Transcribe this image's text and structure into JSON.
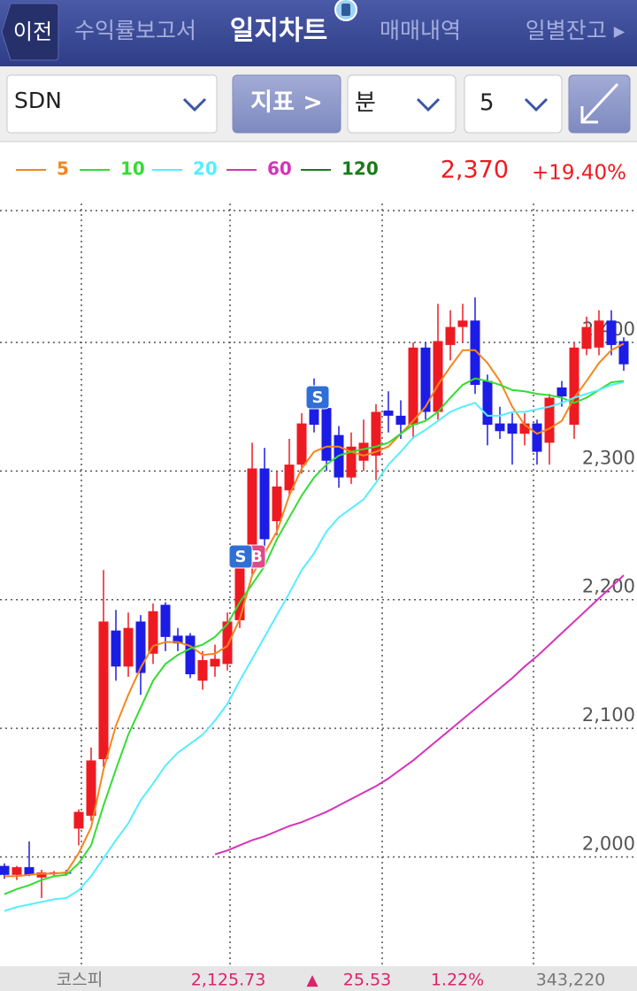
{
  "header": {
    "back": "이전",
    "tabs": [
      "수익률보고서",
      "일지차트",
      "매매내역",
      "일별잔고 ▸"
    ]
  },
  "toolbar": {
    "symbol": "SDN",
    "indicator": "지표 >",
    "unit": "분",
    "interval": "5"
  },
  "chart_data": {
    "type": "candlestick",
    "current_price": "2,370",
    "change": "+19.40%",
    "up_color": "#ee1a22",
    "down_color": "#1c1ce6",
    "open": [
      1993,
      1986,
      1992,
      1984,
      1987,
      1988,
      2022,
      2032,
      2076,
      2176,
      2148,
      2183,
      2158,
      2196,
      2172,
      2172,
      2137,
      2148,
      2150,
      2184,
      2226,
      2302,
      2261,
      2285,
      2305,
      2349,
      2349,
      2328,
      2295,
      2308,
      2312,
      2347,
      2343,
      2336,
      2396,
      2346,
      2398,
      2412,
      2417,
      2370,
      2337,
      2337,
      2329,
      2337,
      2322,
      2365,
      2336,
      2395,
      2396,
      2417,
      2401
    ],
    "high": [
      1995,
      1993,
      2012,
      1990,
      1989,
      1990,
      2037,
      2085,
      2223,
      2192,
      2190,
      2188,
      2197,
      2198,
      2178,
      2174,
      2160,
      2165,
      2190,
      2240,
      2322,
      2318,
      2300,
      2325,
      2345,
      2372,
      2355,
      2335,
      2330,
      2340,
      2352,
      2362,
      2355,
      2400,
      2400,
      2430,
      2425,
      2430,
      2435,
      2375,
      2350,
      2345,
      2345,
      2340,
      2360,
      2370,
      2400,
      2420,
      2425,
      2425,
      2404
    ],
    "low": [
      1983,
      1982,
      1985,
      1968,
      1985,
      1986,
      2009,
      2028,
      2070,
      2137,
      2140,
      2126,
      2150,
      2160,
      2160,
      2139,
      2130,
      2140,
      2145,
      2178,
      2220,
      2240,
      2250,
      2280,
      2298,
      2330,
      2300,
      2287,
      2290,
      2300,
      2293,
      2330,
      2325,
      2325,
      2340,
      2340,
      2386,
      2400,
      2360,
      2320,
      2325,
      2305,
      2320,
      2305,
      2305,
      2350,
      2325,
      2390,
      2390,
      2390,
      2378
    ],
    "close": [
      1986,
      1992,
      1986,
      1988,
      1988,
      1987,
      2035,
      2075,
      2183,
      2148,
      2178,
      2143,
      2191,
      2171,
      2166,
      2142,
      2153,
      2154,
      2183,
      2233,
      2302,
      2247,
      2288,
      2305,
      2337,
      2336,
      2308,
      2295,
      2319,
      2322,
      2346,
      2343,
      2336,
      2396,
      2346,
      2401,
      2412,
      2417,
      2367,
      2336,
      2331,
      2329,
      2337,
      2315,
      2357,
      2358,
      2396,
      2412,
      2417,
      2398,
      2383
    ],
    "series": [
      {
        "name": "5",
        "color": "#f5861f",
        "values": [
          1985,
          1985,
          1986,
          1987,
          1987,
          1988,
          2003,
          2023,
          2068,
          2102,
          2126,
          2147,
          2164,
          2167,
          2167,
          2164,
          2157,
          2158,
          2164,
          2185,
          2219,
          2236,
          2253,
          2281,
          2302,
          2315,
          2319,
          2319,
          2315,
          2312,
          2315,
          2319,
          2329,
          2339,
          2350,
          2367,
          2381,
          2394,
          2394,
          2384,
          2370,
          2350,
          2336,
          2329,
          2333,
          2339,
          2357,
          2370,
          2384,
          2394,
          2399
        ]
      },
      {
        "name": "10",
        "color": "#33dd33",
        "values": [
          1971,
          1975,
          1978,
          1982,
          1985,
          1986,
          1995,
          2009,
          2040,
          2068,
          2095,
          2116,
          2137,
          2150,
          2157,
          2162,
          2165,
          2171,
          2181,
          2198,
          2212,
          2226,
          2247,
          2264,
          2281,
          2295,
          2305,
          2312,
          2315,
          2317,
          2319,
          2322,
          2329,
          2336,
          2339,
          2346,
          2357,
          2367,
          2372,
          2370,
          2367,
          2363,
          2362,
          2360,
          2359,
          2357,
          2353,
          2357,
          2363,
          2369,
          2370
        ]
      },
      {
        "name": "20",
        "color": "#55eeff",
        "values": [
          1958,
          1961,
          1963,
          1965,
          1967,
          1968,
          1974,
          1985,
          1999,
          2013,
          2026,
          2044,
          2057,
          2071,
          2081,
          2088,
          2095,
          2106,
          2119,
          2137,
          2154,
          2171,
          2188,
          2205,
          2223,
          2236,
          2253,
          2264,
          2271,
          2278,
          2291,
          2305,
          2315,
          2326,
          2332,
          2339,
          2346,
          2350,
          2353,
          2343,
          2343,
          2346,
          2346,
          2348,
          2350,
          2353,
          2357,
          2360,
          2363,
          2367,
          2369
        ]
      },
      {
        "name": "60",
        "color": "#d633b8",
        "values": [
          null,
          null,
          null,
          null,
          null,
          null,
          null,
          null,
          null,
          null,
          null,
          null,
          null,
          null,
          null,
          null,
          null,
          2002,
          2005,
          2009,
          2013,
          2016,
          2020,
          2024,
          2027,
          2031,
          2035,
          2040,
          2045,
          2050,
          2055,
          2061,
          2068,
          2075,
          2083,
          2091,
          2099,
          2107,
          2115,
          2123,
          2131,
          2139,
          2148,
          2156,
          2165,
          2174,
          2183,
          2192,
          2201,
          2210,
          2219
        ]
      },
      {
        "name": "120",
        "color": "#1a7a1a",
        "values": [
          null,
          null,
          null,
          null,
          null,
          null,
          null,
          null,
          null,
          null,
          null,
          null,
          null,
          null,
          null,
          null,
          null,
          null,
          null,
          null,
          null,
          null,
          null,
          null,
          null,
          null,
          null,
          null,
          null,
          null,
          null,
          null,
          null,
          null,
          null,
          null,
          null,
          null,
          null,
          null,
          null,
          null,
          null,
          null,
          null,
          null,
          null,
          null,
          null,
          null,
          null
        ]
      }
    ],
    "ylim": [
      1915,
      2508
    ],
    "yticks": [
      {
        "value": 2000,
        "label": "2,000"
      },
      {
        "value": 2100,
        "label": "2,100"
      },
      {
        "value": 2200,
        "label": "2,200"
      },
      {
        "value": 2300,
        "label": "2,300"
      },
      {
        "value": 2400,
        "label": "2,400"
      }
    ],
    "grid": true,
    "annotations": [
      "S",
      "S",
      "B"
    ]
  },
  "footer": {
    "index": "코스피",
    "value": "2,125.73",
    "arrow": "▲",
    "change": "25.53",
    "percent": "1.22%",
    "volume": "343,220"
  }
}
